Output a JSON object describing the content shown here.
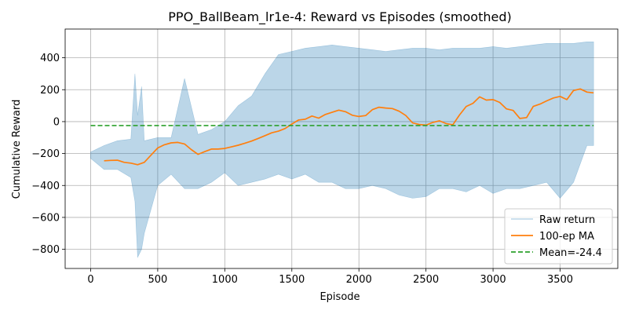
{
  "chart_data": {
    "type": "line",
    "title": "PPO_BallBeam_lr1e-4: Reward vs Episodes (smoothed)",
    "xlabel": "Episode",
    "ylabel": "Cumulative Reward",
    "xlim": [
      -190,
      3930
    ],
    "ylim": [
      -920,
      580
    ],
    "xticks": [
      0,
      500,
      1000,
      1500,
      2000,
      2500,
      3000,
      3500
    ],
    "yticks": [
      -800,
      -600,
      -400,
      -200,
      0,
      200,
      400
    ],
    "xtick_labels": [
      "0",
      "500",
      "1000",
      "1500",
      "2000",
      "2500",
      "3000",
      "3500"
    ],
    "ytick_labels": [
      "−800",
      "−600",
      "−400",
      "−200",
      "0",
      "200",
      "400"
    ],
    "grid": true,
    "legend_position": "lower-right",
    "series": [
      {
        "name": "Raw return",
        "style": "band",
        "color": "#1f77b4",
        "opacity": 0.3,
        "x": [
          0,
          100,
          200,
          300,
          330,
          350,
          380,
          400,
          500,
          600,
          700,
          800,
          900,
          1000,
          1100,
          1200,
          1300,
          1400,
          1500,
          1600,
          1700,
          1800,
          1900,
          2000,
          2100,
          2200,
          2300,
          2400,
          2500,
          2600,
          2700,
          2800,
          2900,
          3000,
          3100,
          3200,
          3300,
          3400,
          3500,
          3600,
          3700,
          3750
        ],
        "upper": [
          -190,
          -150,
          -120,
          -110,
          300,
          40,
          220,
          -120,
          -100,
          -100,
          270,
          -80,
          -50,
          0,
          100,
          160,
          300,
          420,
          440,
          460,
          470,
          480,
          470,
          460,
          450,
          440,
          450,
          460,
          460,
          450,
          460,
          460,
          460,
          470,
          460,
          470,
          480,
          490,
          490,
          490,
          500,
          500
        ],
        "lower": [
          -230,
          -300,
          -300,
          -350,
          -500,
          -850,
          -800,
          -700,
          -400,
          -330,
          -420,
          -420,
          -380,
          -320,
          -400,
          -380,
          -360,
          -330,
          -360,
          -330,
          -380,
          -380,
          -420,
          -420,
          -400,
          -420,
          -460,
          -480,
          -470,
          -420,
          -420,
          -440,
          -400,
          -450,
          -420,
          -420,
          -400,
          -380,
          -480,
          -380,
          -150,
          -150
        ]
      },
      {
        "name": "100-ep MA",
        "style": "line",
        "color": "#ff7f0e",
        "x": [
          100,
          150,
          200,
          250,
          300,
          350,
          400,
          450,
          500,
          550,
          600,
          650,
          700,
          750,
          800,
          850,
          900,
          950,
          1000,
          1050,
          1100,
          1150,
          1200,
          1250,
          1300,
          1350,
          1400,
          1450,
          1500,
          1550,
          1600,
          1650,
          1700,
          1750,
          1800,
          1850,
          1900,
          1950,
          2000,
          2050,
          2100,
          2150,
          2200,
          2250,
          2300,
          2350,
          2400,
          2450,
          2500,
          2550,
          2600,
          2650,
          2700,
          2750,
          2800,
          2850,
          2900,
          2950,
          3000,
          3050,
          3100,
          3150,
          3200,
          3250,
          3300,
          3350,
          3400,
          3450,
          3500,
          3550,
          3600,
          3650,
          3700,
          3750
        ],
        "y": [
          -245,
          -243,
          -242,
          -255,
          -260,
          -270,
          -255,
          -210,
          -165,
          -145,
          -133,
          -130,
          -140,
          -175,
          -205,
          -188,
          -172,
          -172,
          -168,
          -158,
          -148,
          -135,
          -122,
          -105,
          -88,
          -70,
          -60,
          -43,
          -15,
          10,
          15,
          35,
          22,
          45,
          58,
          72,
          62,
          40,
          32,
          38,
          75,
          90,
          85,
          82,
          65,
          38,
          -8,
          -18,
          -22,
          -5,
          5,
          -12,
          -20,
          42,
          95,
          115,
          155,
          135,
          138,
          120,
          80,
          70,
          20,
          25,
          95,
          110,
          130,
          148,
          158,
          138,
          195,
          205,
          185,
          180
        ]
      },
      {
        "name": "Mean=-24.4",
        "style": "dashed",
        "color": "#2ca02c",
        "x": [
          0,
          3750
        ],
        "y": [
          -24.4,
          -24.4
        ]
      }
    ]
  }
}
